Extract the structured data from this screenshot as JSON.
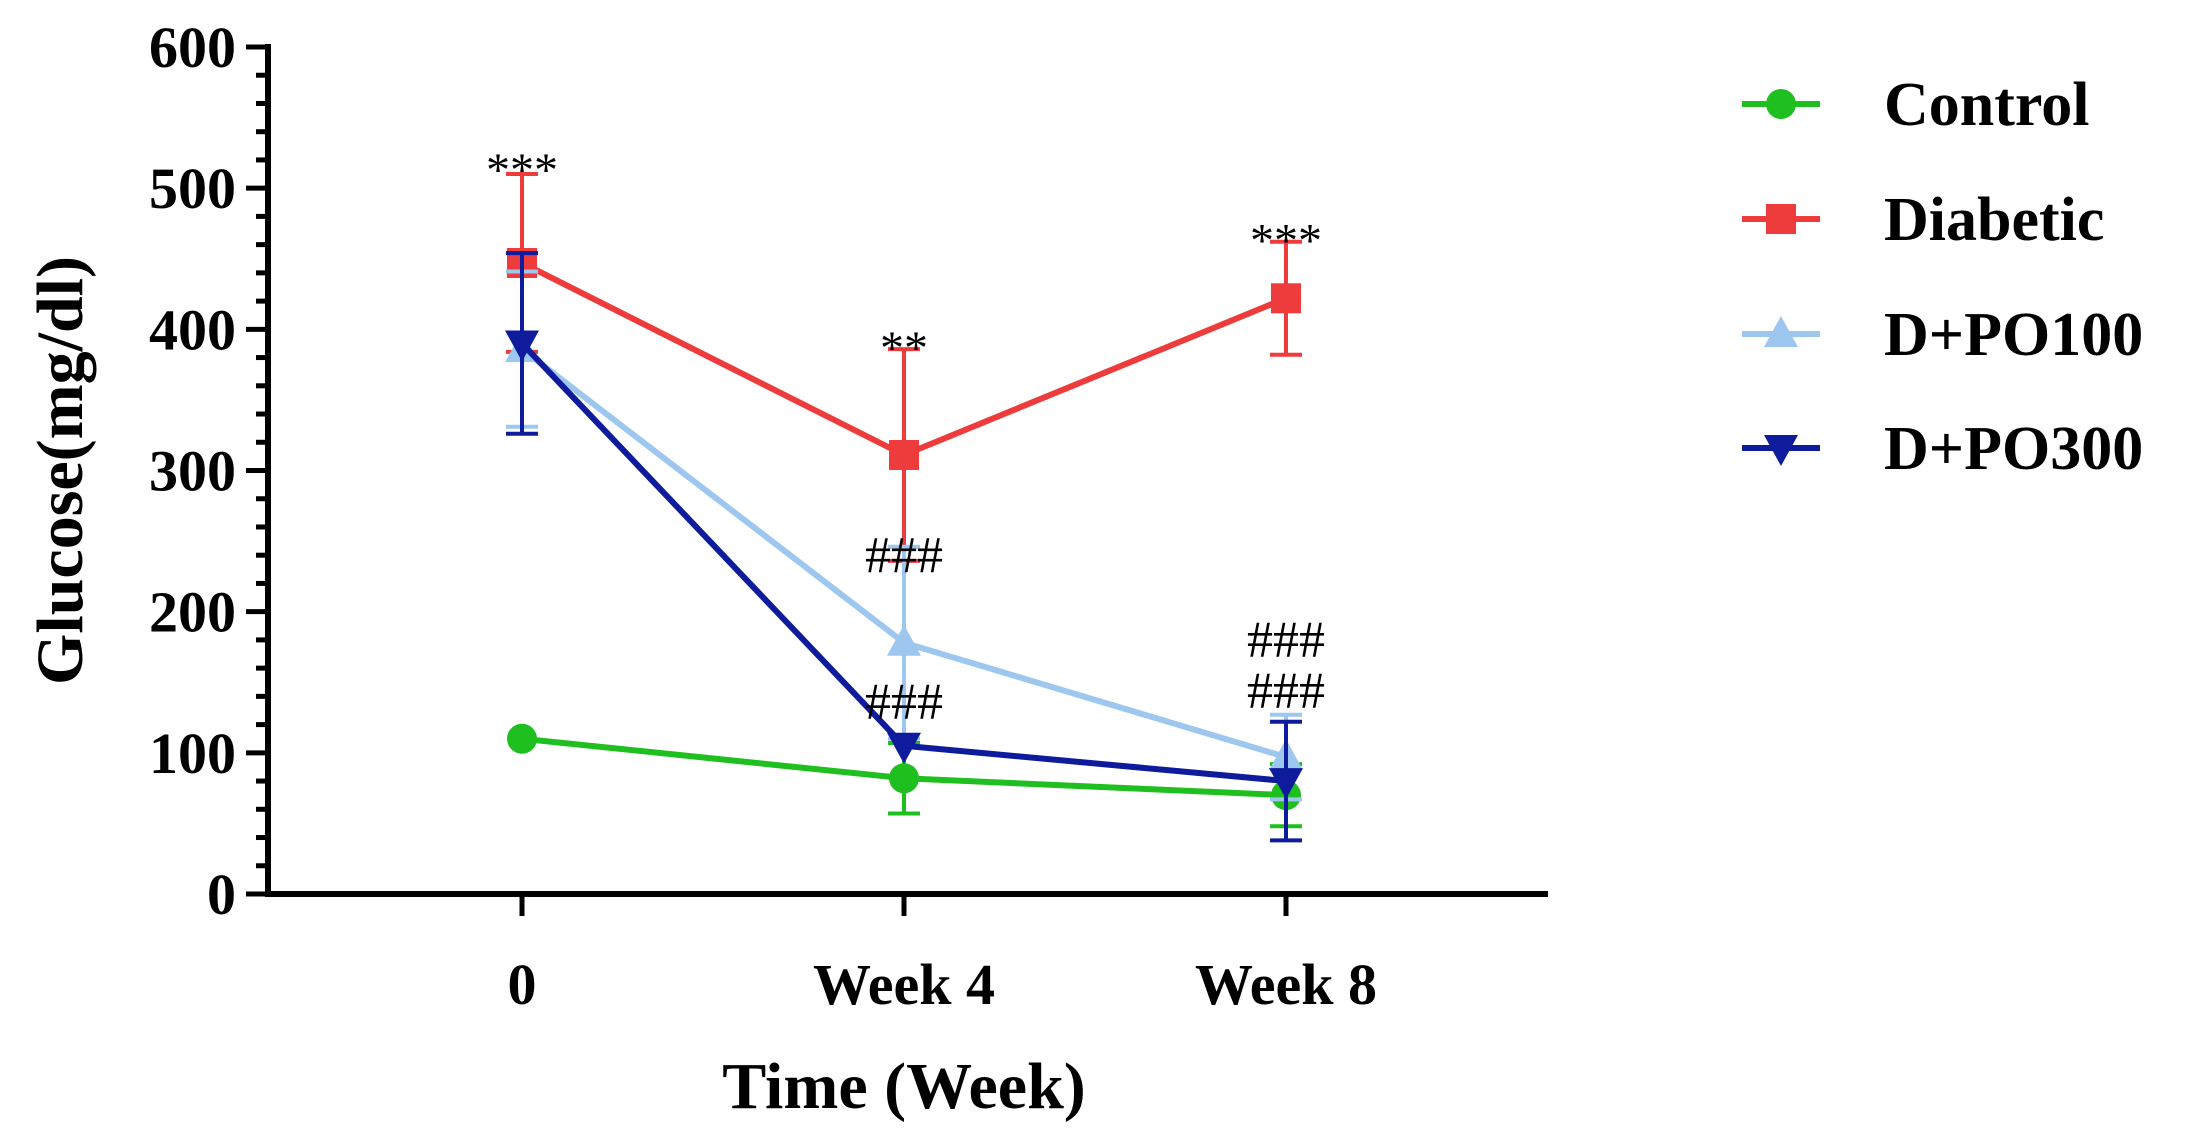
{
  "chart_data": {
    "type": "line",
    "title": "",
    "xlabel": "Time (Week)",
    "ylabel": "Glucose(mg/dl)",
    "categories": [
      "0",
      "Week 4",
      "Week 8"
    ],
    "ylim": [
      0,
      600
    ],
    "yticks": [
      0,
      100,
      200,
      300,
      400,
      500,
      600
    ],
    "grid": false,
    "legend_position": "top-right",
    "series": [
      {
        "name": "Control",
        "color": "#1fbf1f",
        "marker": "circle",
        "values": [
          110,
          82,
          70
        ],
        "errors": [
          0,
          25,
          22
        ]
      },
      {
        "name": "Diabetic",
        "color": "#ee3b3b",
        "marker": "square",
        "values": [
          447,
          311,
          422
        ],
        "errors": [
          63,
          75,
          40
        ]
      },
      {
        "name": "D+PO100",
        "color": "#9ec7f0",
        "marker": "triangle-up",
        "values": [
          386,
          178,
          97
        ],
        "errors": [
          55,
          68,
          30
        ]
      },
      {
        "name": "D+PO300",
        "color": "#0d1b9c",
        "marker": "triangle-down",
        "values": [
          390,
          105,
          80
        ],
        "errors": [
          64,
          0,
          42
        ]
      }
    ],
    "annotations": [
      {
        "text": "***",
        "category": 0,
        "y": 520,
        "kind": "star"
      },
      {
        "text": "**",
        "category": 1,
        "y": 394,
        "kind": "star"
      },
      {
        "text": "***",
        "category": 2,
        "y": 470,
        "kind": "star"
      },
      {
        "text": "###",
        "category": 1,
        "y": 241,
        "kind": "hash"
      },
      {
        "text": "###",
        "category": 1,
        "y": 137,
        "kind": "hash"
      },
      {
        "text": "###",
        "category": 2,
        "y": 181,
        "kind": "hash"
      },
      {
        "text": "###",
        "category": 2,
        "y": 145,
        "kind": "hash"
      }
    ]
  }
}
